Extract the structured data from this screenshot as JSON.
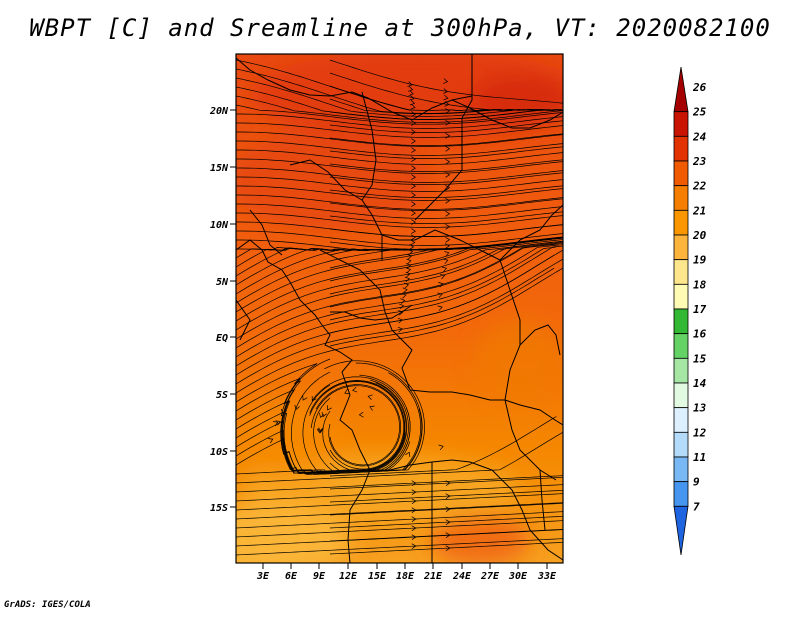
{
  "title": "WBPT [C] and Sreamline at 300hPa, VT: 2020082100",
  "footer": "GrADS: IGES/COLA",
  "map": {
    "lat_labels": [
      "20N",
      "15N",
      "10N",
      "5N",
      "EQ",
      "5S",
      "10S",
      "15S"
    ],
    "lon_labels": [
      "3E",
      "6E",
      "9E",
      "12E",
      "15E",
      "18E",
      "21E",
      "24E",
      "27E",
      "30E",
      "33E"
    ]
  },
  "colorbar": {
    "levels": [
      "26",
      "25",
      "24",
      "23",
      "22",
      "21",
      "20",
      "19",
      "18",
      "17",
      "16",
      "15",
      "14",
      "13",
      "12",
      "11",
      "9",
      "7"
    ],
    "colors": [
      "#a50000",
      "#c81400",
      "#e13200",
      "#f05a00",
      "#f57d00",
      "#fa9600",
      "#fcb43c",
      "#fde68c",
      "#fffab4",
      "#33b833",
      "#64d264",
      "#a5e6a5",
      "#e1fae1",
      "#dcf0ff",
      "#b4dcfa",
      "#78b9f5",
      "#4696f0",
      "#1e64e1"
    ]
  }
}
